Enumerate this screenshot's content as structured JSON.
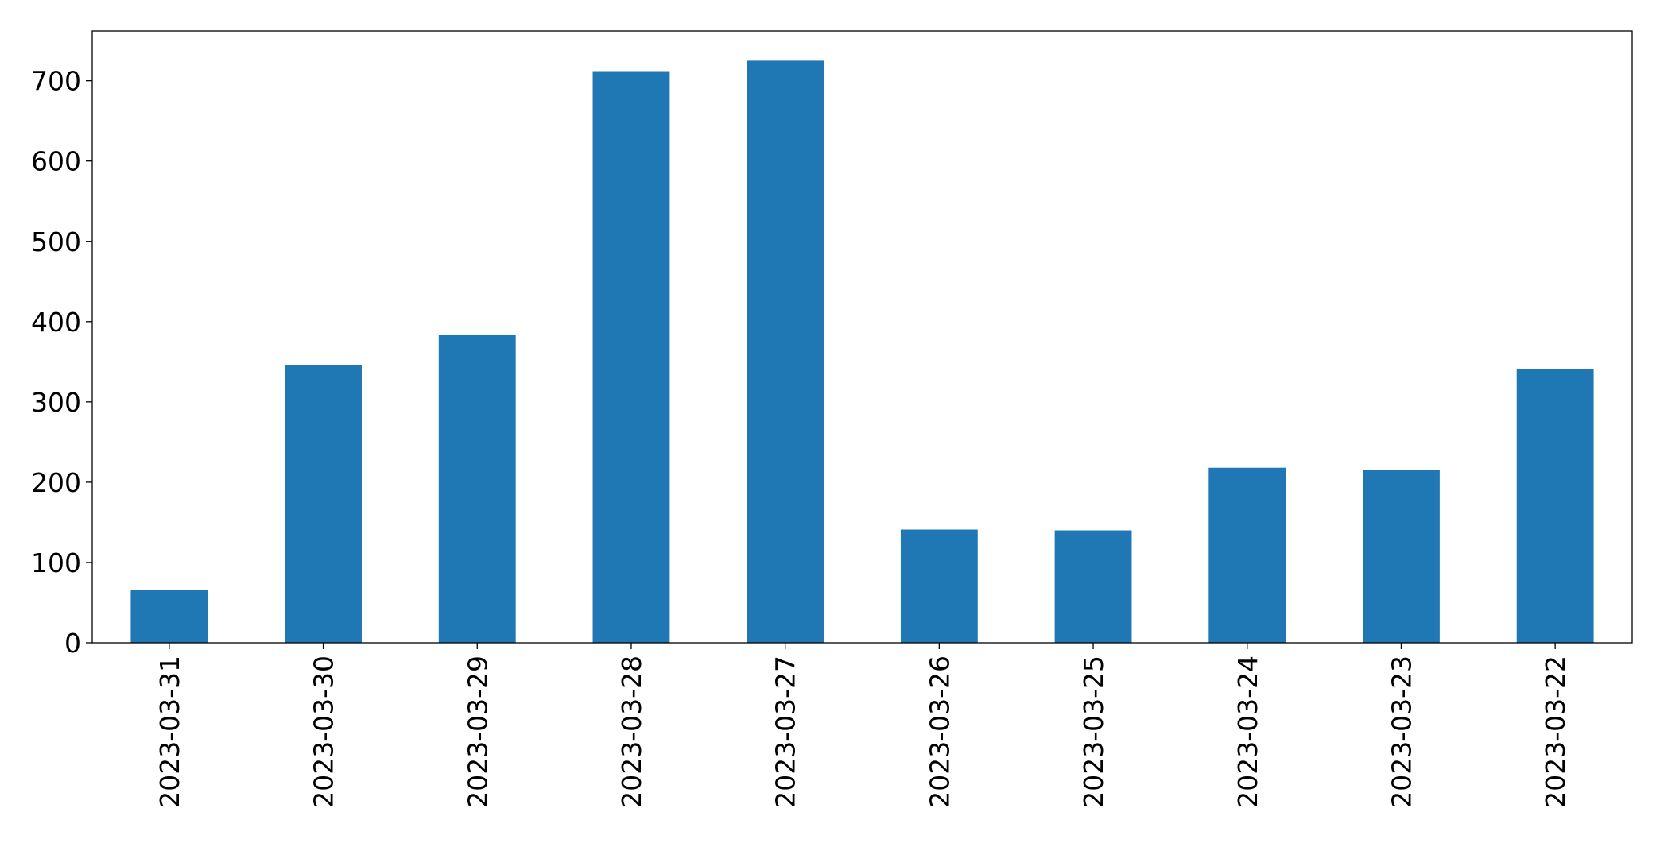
{
  "chart_data": {
    "type": "bar",
    "categories": [
      "2023-03-31",
      "2023-03-30",
      "2023-03-29",
      "2023-03-28",
      "2023-03-27",
      "2023-03-26",
      "2023-03-25",
      "2023-03-24",
      "2023-03-23",
      "2023-03-22"
    ],
    "values": [
      66,
      346,
      383,
      712,
      725,
      141,
      140,
      218,
      215,
      341
    ],
    "color": "#1f77b4",
    "ylim": [
      0,
      762
    ],
    "yticks": [
      0,
      100,
      200,
      300,
      400,
      500,
      600,
      700
    ],
    "grid": false
  }
}
